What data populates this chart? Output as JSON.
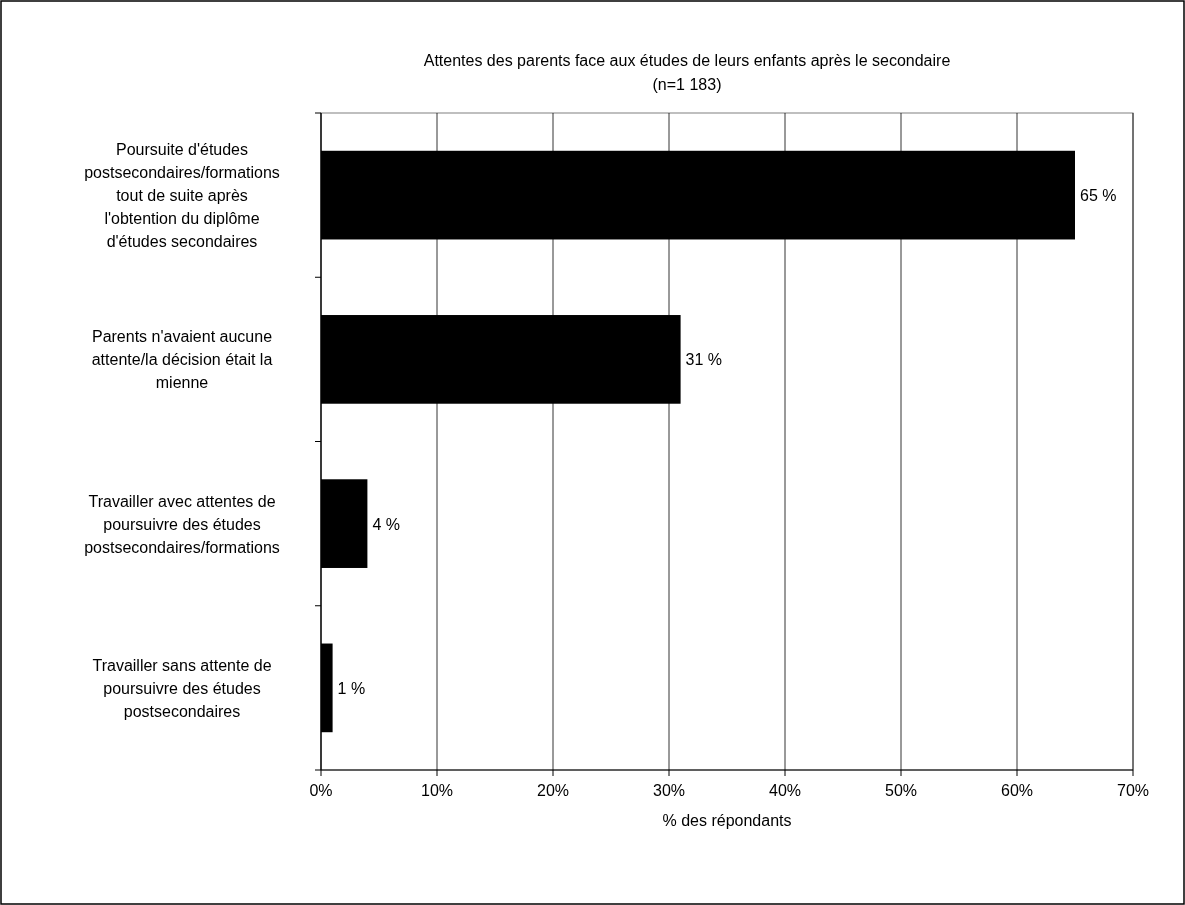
{
  "chart_data": {
    "type": "bar",
    "orientation": "horizontal",
    "title": "Attentes des parents face aux études de leurs enfants après le secondaire",
    "subtitle": "(n=1 183)",
    "xlabel": "% des répondants",
    "categories": [
      "Poursuite d'études postsecondaires/formations tout de suite après l'obtention du diplôme d'études secondaires",
      "Parents n'avaient aucune attente/la décision était la mienne",
      "Travailler avec attentes de poursuivre des études postsecondaires/formations",
      "Travailler sans attente de poursuivre des études postsecondaires"
    ],
    "values": [
      65,
      31,
      4,
      1
    ],
    "value_labels": [
      "65 %",
      "31 %",
      "4 %",
      "1 %"
    ],
    "color": "#000000",
    "xlim": [
      0,
      70
    ],
    "xticks": [
      {
        "value": 0,
        "label": "0%"
      },
      {
        "value": 10,
        "label": "10%"
      },
      {
        "value": 20,
        "label": "20%"
      },
      {
        "value": 30,
        "label": "30%"
      },
      {
        "value": 40,
        "label": "40%"
      },
      {
        "value": 50,
        "label": "50%"
      },
      {
        "value": 60,
        "label": "60%"
      },
      {
        "value": 70,
        "label": "70%"
      }
    ],
    "grid": "x"
  }
}
